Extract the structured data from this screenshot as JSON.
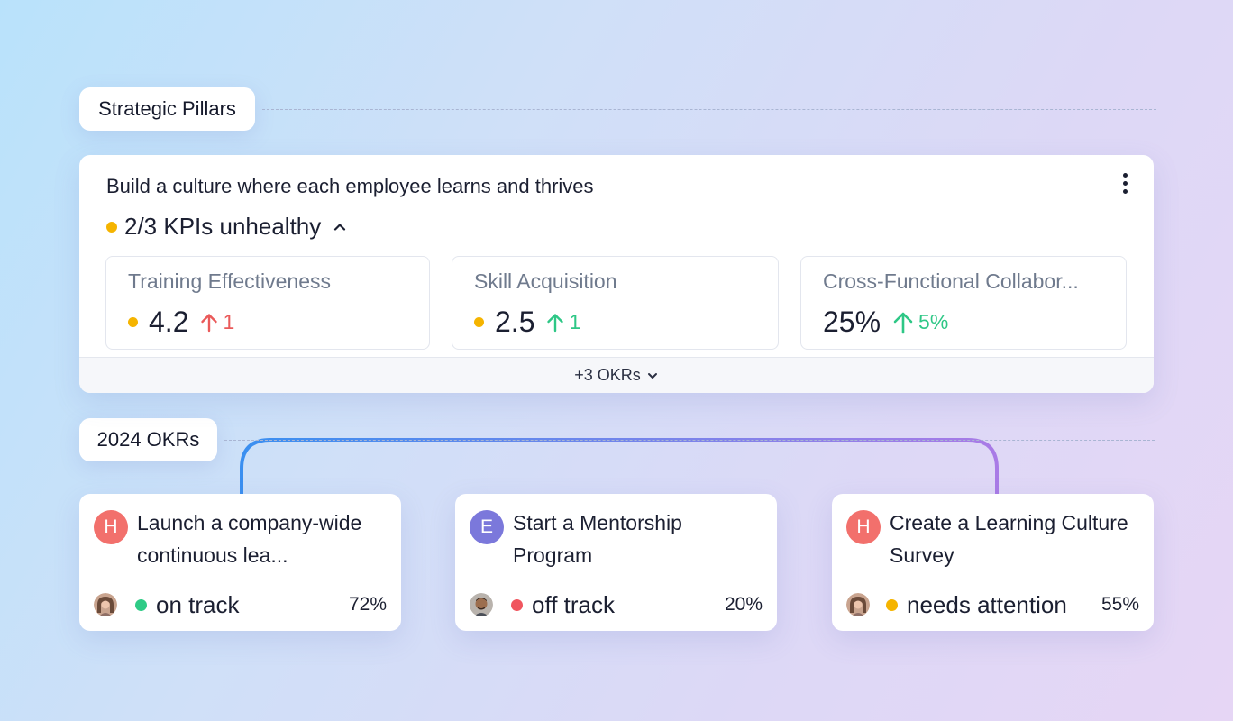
{
  "sections": {
    "pillars_label": "Strategic Pillars",
    "okrs_label": "2024 OKRs"
  },
  "pillar": {
    "title": "Build a culture where each employee learns and thrives",
    "health": {
      "text": "2/3 KPIs unhealthy",
      "dot_color": "#f5b400"
    },
    "kpis": [
      {
        "title": "Training Effectiveness",
        "value": "4.2",
        "delta": "1",
        "trend": "up",
        "delta_color": "#ea5a5a",
        "dot_color": "#f5b400"
      },
      {
        "title": "Skill Acquisition",
        "value": "2.5",
        "delta": "1",
        "trend": "up",
        "delta_color": "#2ec786",
        "dot_color": "#f5b400"
      },
      {
        "title": "Cross-Functional Collabor...",
        "value": "25%",
        "delta": "5%",
        "trend": "up",
        "delta_color": "#2ec786"
      }
    ],
    "more_okrs": "+3 OKRs"
  },
  "okrs": [
    {
      "initial": "H",
      "avatar_color": "#f2706c",
      "title": "Launch a company-wide continuous lea...",
      "status": "on track",
      "status_color": "#2fcb86",
      "percent": "72%"
    },
    {
      "initial": "E",
      "avatar_color": "#7b78db",
      "title": "Start a Mentorship Program",
      "status": "off track",
      "status_color": "#f0565f",
      "percent": "20%"
    },
    {
      "initial": "H",
      "avatar_color": "#f2706c",
      "title": "Create a Learning Culture Survey",
      "status": "needs attention",
      "status_color": "#f5b400",
      "percent": "55%"
    }
  ],
  "colors": {
    "connector_start": "#2f8bf0",
    "connector_end": "#a97be6"
  },
  "icons": {
    "menu": "kebab-icon",
    "collapse": "chevron-up-icon",
    "expand": "chevron-down-icon",
    "trend": "arrow-up-icon"
  }
}
